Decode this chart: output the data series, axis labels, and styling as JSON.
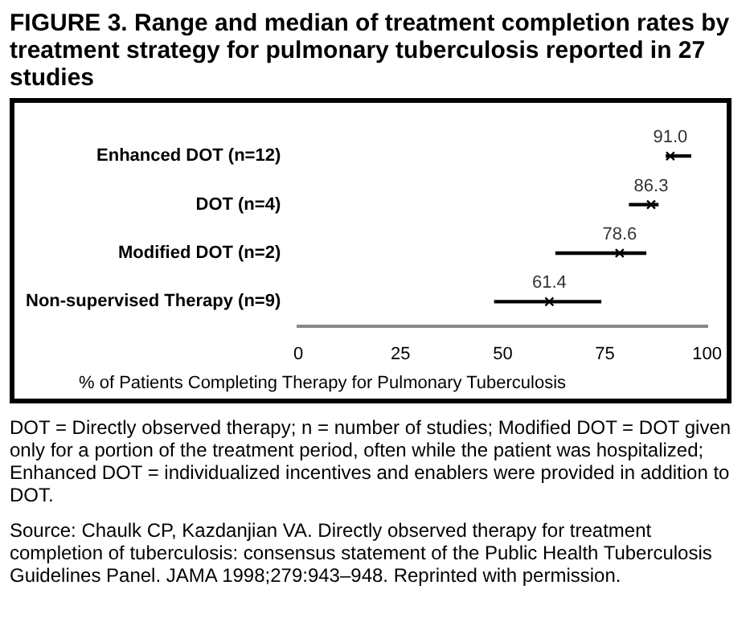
{
  "chart_data": {
    "type": "bar",
    "orientation": "horizontal",
    "title": "FIGURE 3. Range and median of treatment completion rates by treatment strategy for pulmonary tuberculosis reported in 27 studies",
    "xlabel": "% of Patients Completing Therapy for Pulmonary Tuberculosis",
    "categories": [
      "Enhanced DOT (n=12)",
      "DOT (n=4)",
      "Modified DOT (n=2)",
      "Non-supervised Therapy (n=9)"
    ],
    "series": [
      {
        "color": "#000000",
        "base": [
          90,
          81,
          63,
          48
        ],
        "values": [
          6,
          7,
          22,
          26
        ]
      },
      {
        "type": "scatter",
        "color": "#000000",
        "marker": "cross",
        "values": [
          91.0,
          86.3,
          78.6,
          61.4
        ],
        "value_labels": [
          "91.0",
          "86.3",
          "78.6",
          "61.4"
        ]
      }
    ],
    "xlim": [
      0,
      100
    ],
    "xticks": [
      0,
      25,
      50,
      75,
      100
    ],
    "grid": false,
    "legend": false,
    "annotations": [
      "DOT = Directly observed therapy; n = number of studies; Modified DOT = DOT given only for a portion of the treatment period, often while the patient was hospitalized; Enhanced DOT = individualized incentives and enablers were provided in addition to DOT.",
      "Source: Chaulk CP, Kazdanjian VA. Directly observed therapy for treatment completion of tuberculosis: consensus statement of the Public Health Tuberculosis Guidelines Panel. JAMA 1998;279:943–948. Reprinted with permission."
    ]
  }
}
